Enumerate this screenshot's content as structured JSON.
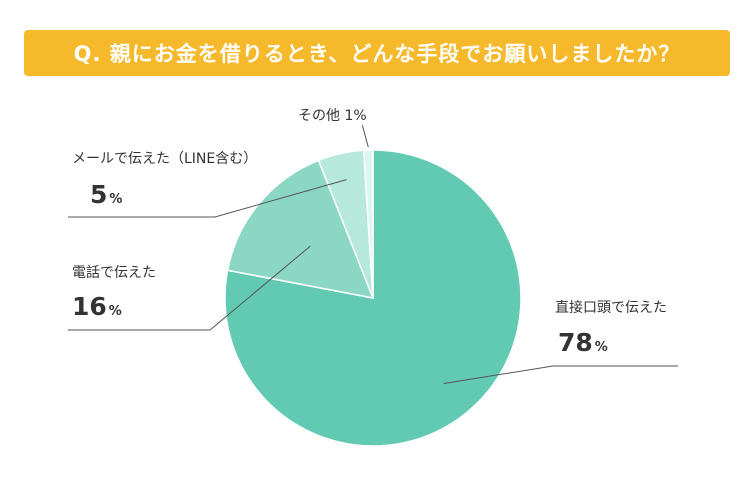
{
  "title": "Q. 親にお金を借りるとき、どんな手段でお願いしましたか？",
  "chart_data": {
    "type": "pie",
    "title": "Q. 親にお金を借りるとき、どんな手段でお願いしましたか？",
    "unit": "%",
    "slices": [
      {
        "label": "直接口頭で伝えた",
        "value": 78,
        "color": "#62c9b2"
      },
      {
        "label": "電話で伝えた",
        "value": 16,
        "color": "#8bd7c4"
      },
      {
        "label": "メールで伝えた（LINE含む）",
        "value": 5,
        "color": "#b6e9dc"
      },
      {
        "label": "その他",
        "value": 1,
        "color": "#dff5ef"
      }
    ]
  },
  "colors": {
    "title_bg": "#f7b92c",
    "leader": "#555555",
    "text": "#333333"
  }
}
